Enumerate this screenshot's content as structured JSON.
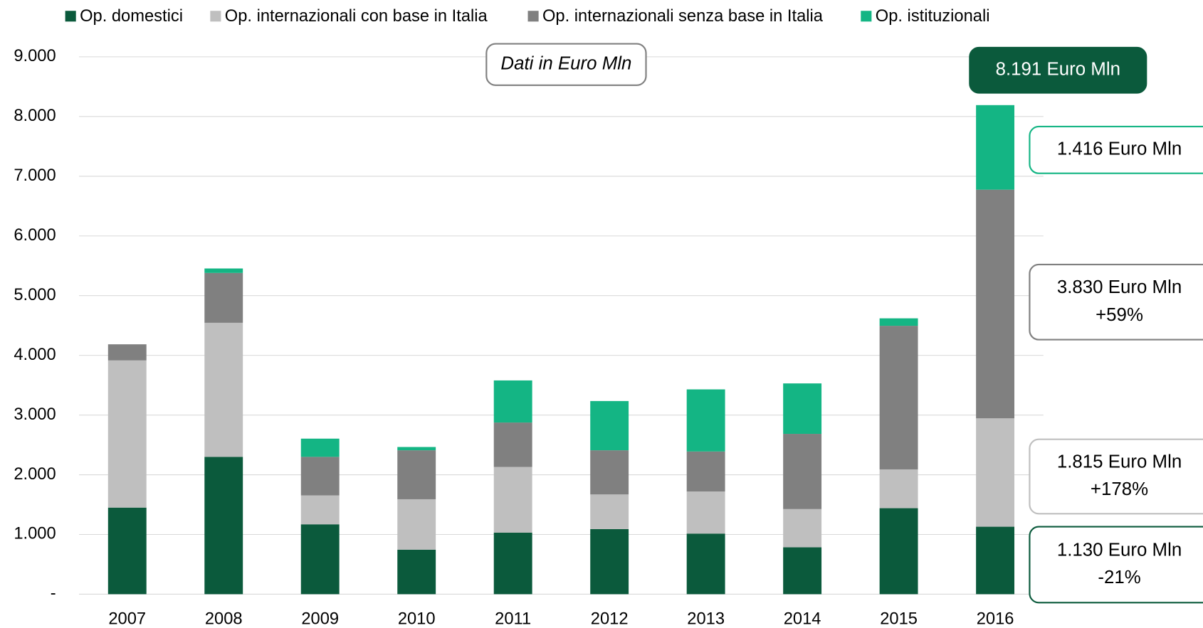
{
  "chart_data": {
    "type": "stacked_bar",
    "categories": [
      "2007",
      "2008",
      "2009",
      "2010",
      "2011",
      "2012",
      "2013",
      "2014",
      "2015",
      "2016"
    ],
    "series": [
      {
        "name": "Op. domestici",
        "color": "#0b5a3c",
        "values": [
          1450,
          2300,
          1170,
          745,
          1030,
          1090,
          1015,
          785,
          1440,
          1130
        ]
      },
      {
        "name": "Op. internazionali con base in Italia",
        "color": "#bfbfbf",
        "values": [
          2465,
          2245,
          485,
          845,
          1100,
          580,
          705,
          640,
          650,
          1815
        ]
      },
      {
        "name": "Op. internazionali senza base in Italia",
        "color": "#808080",
        "values": [
          270,
          835,
          645,
          820,
          745,
          740,
          670,
          1260,
          2405,
          3830
        ]
      },
      {
        "name": "Op. istituzionali",
        "color": "#14b584",
        "values": [
          0,
          75,
          305,
          55,
          705,
          825,
          1040,
          845,
          125,
          1416
        ]
      }
    ],
    "ylim": [
      0,
      9000
    ],
    "yticks": [
      {
        "value": 0,
        "label": "-"
      },
      {
        "value": 1000,
        "label": "1.000"
      },
      {
        "value": 2000,
        "label": "2.000"
      },
      {
        "value": 3000,
        "label": "3.000"
      },
      {
        "value": 4000,
        "label": "4.000"
      },
      {
        "value": 5000,
        "label": "5.000"
      },
      {
        "value": 6000,
        "label": "6.000"
      },
      {
        "value": 7000,
        "label": "7.000"
      },
      {
        "value": 8000,
        "label": "8.000"
      },
      {
        "value": 9000,
        "label": "9.000"
      }
    ],
    "grid": true,
    "legend": "top",
    "annotations": [
      {
        "lines": [
          "Dati in Euro Mln"
        ]
      },
      {
        "lines": [
          "8.191 Euro Mln"
        ]
      },
      {
        "lines": [
          "1.416 Euro Mln"
        ]
      },
      {
        "lines": [
          "3.830 Euro Mln",
          "+59%"
        ]
      },
      {
        "lines": [
          "1.815 Euro Mln",
          "+178%"
        ]
      },
      {
        "lines": [
          "1.130 Euro Mln",
          "-21%"
        ]
      }
    ]
  }
}
